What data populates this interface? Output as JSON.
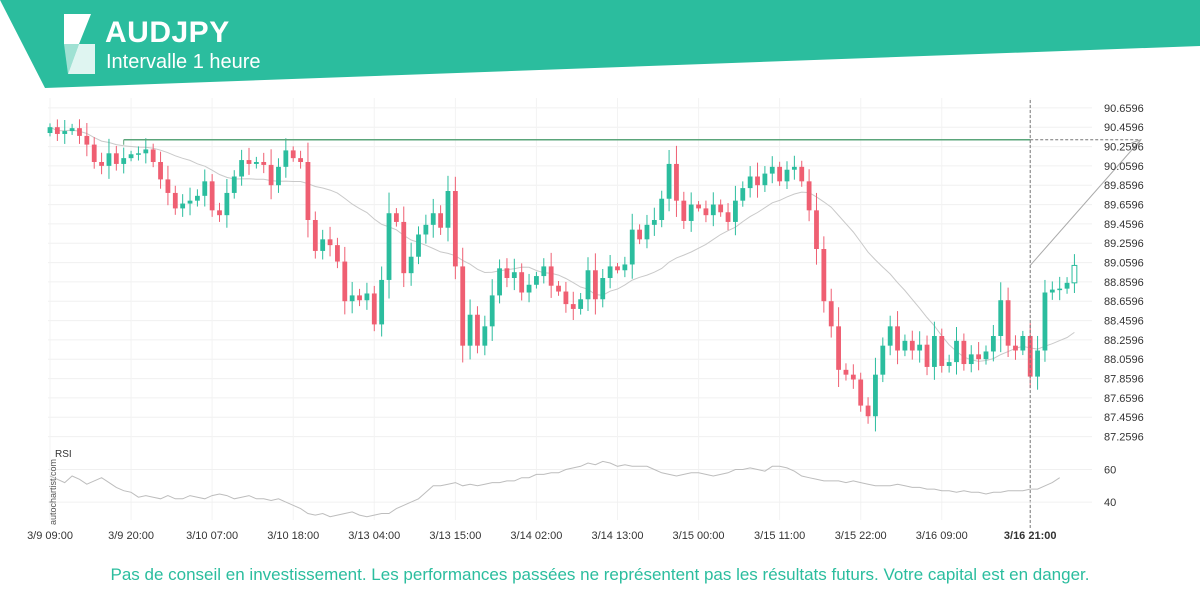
{
  "header": {
    "symbol": "AUDJPY",
    "interval": "Intervalle 1 heure",
    "brand_color": "#2bbd9e"
  },
  "footer": {
    "disclaimer": "Pas de conseil en investissement. Les performances passées ne représentent pas les résultats futurs. Votre capital est en danger."
  },
  "watermark": "autochartist.com",
  "chart_data": {
    "type": "candlestick",
    "title": "AUDJPY",
    "subtitle": "Intervalle 1 heure",
    "up_color": "#2bbd9e",
    "down_color": "#ef5f72",
    "ylim": [
      87.1,
      90.7
    ],
    "y_ticks": [
      "90.6596",
      "90.4596",
      "90.2596",
      "90.0596",
      "89.8596",
      "89.6596",
      "89.4596",
      "89.2596",
      "89.0596",
      "88.8596",
      "88.6596",
      "88.4596",
      "88.2596",
      "88.0596",
      "87.8596",
      "87.6596",
      "87.4596",
      "87.2596"
    ],
    "y_tick_values": [
      90.6596,
      90.4596,
      90.2596,
      90.0596,
      89.8596,
      89.6596,
      89.4596,
      89.2596,
      89.0596,
      88.8596,
      88.6596,
      88.4596,
      88.2596,
      88.0596,
      87.8596,
      87.6596,
      87.4596,
      87.2596
    ],
    "x_tick_labels": [
      "3/9 09:00",
      "3/9 20:00",
      "3/10 07:00",
      "3/10 18:00",
      "3/13 04:00",
      "3/13 15:00",
      "3/14 02:00",
      "3/14 13:00",
      "3/15 00:00",
      "3/15 11:00",
      "3/15 22:00",
      "3/16 09:00",
      "3/16 21:00"
    ],
    "x_tick_bar_index": [
      0,
      11,
      22,
      33,
      44,
      55,
      66,
      77,
      88,
      99,
      110,
      121,
      133
    ],
    "current_bar_label": "3/16 21:00",
    "current_bar_index": 133,
    "resistance_level": 90.33,
    "resistance_start_index": 10,
    "forecast_target": {
      "bar_index": 148,
      "price": 90.33
    },
    "grid": true,
    "closes": [
      90.46,
      90.39,
      90.42,
      90.45,
      90.37,
      90.28,
      90.1,
      90.06,
      90.19,
      90.08,
      90.14,
      90.18,
      90.19,
      90.23,
      90.1,
      89.92,
      89.78,
      89.62,
      89.67,
      89.7,
      89.75,
      89.9,
      89.6,
      89.55,
      89.78,
      89.95,
      90.12,
      90.08,
      90.1,
      90.07,
      89.86,
      90.05,
      90.22,
      90.14,
      90.1,
      89.5,
      89.18,
      89.3,
      89.24,
      89.07,
      88.66,
      88.72,
      88.67,
      88.74,
      88.42,
      88.88,
      89.57,
      89.48,
      88.95,
      89.12,
      89.35,
      89.45,
      89.57,
      89.42,
      89.8,
      89.02,
      88.2,
      88.52,
      88.2,
      88.4,
      88.72,
      89.0,
      88.9,
      88.96,
      88.75,
      88.83,
      88.92,
      89.02,
      88.82,
      88.76,
      88.63,
      88.58,
      88.68,
      88.98,
      88.68,
      88.9,
      89.02,
      88.98,
      89.04,
      89.4,
      89.3,
      89.45,
      89.5,
      89.72,
      90.08,
      89.7,
      89.49,
      89.66,
      89.62,
      89.55,
      89.66,
      89.58,
      89.48,
      89.7,
      89.83,
      89.95,
      89.86,
      89.98,
      90.05,
      89.9,
      90.02,
      90.05,
      89.9,
      89.6,
      89.2,
      88.66,
      88.4,
      87.95,
      87.9,
      87.85,
      87.58,
      87.47,
      87.9,
      88.2,
      88.4,
      88.15,
      88.25,
      88.15,
      88.21,
      87.98,
      88.3,
      87.99,
      88.03,
      88.25,
      88.01,
      88.11,
      88.06,
      88.14,
      88.3,
      88.67,
      88.2,
      88.15,
      88.3,
      87.88,
      88.15,
      88.75,
      88.78,
      88.79,
      88.85,
      89.03
    ]
  },
  "rsi": {
    "label": "RSI",
    "y_ticks": [
      "60",
      "40"
    ],
    "y_tick_values": [
      60,
      40
    ],
    "ylim": [
      29,
      72
    ],
    "values": [
      56,
      54,
      52,
      56,
      54,
      51,
      53,
      55,
      52,
      49,
      47,
      46,
      43,
      44,
      43,
      42,
      44,
      42,
      42,
      44,
      43,
      42,
      44,
      45,
      44,
      42,
      43,
      44,
      42,
      42,
      41,
      42,
      40,
      38,
      36,
      33,
      32,
      33,
      31,
      32,
      33,
      34,
      32,
      31,
      32,
      33,
      33,
      36,
      38,
      40,
      42,
      46,
      50,
      50,
      51,
      52,
      50,
      51,
      50,
      51,
      52,
      52,
      53,
      53,
      55,
      55,
      57,
      57,
      58,
      58,
      60,
      61,
      62,
      64,
      63,
      65,
      64,
      62,
      63,
      62,
      62,
      62,
      60,
      58,
      57,
      56,
      57,
      58,
      58,
      57,
      56,
      57,
      58,
      60,
      60,
      61,
      60,
      59,
      62,
      62,
      61,
      59,
      56,
      55,
      54,
      53,
      53,
      53,
      52,
      53,
      52,
      51,
      50,
      50,
      50,
      51,
      50,
      49,
      49,
      48,
      48,
      47,
      47,
      46,
      47,
      46,
      46,
      45,
      46,
      46,
      47,
      47,
      47,
      48,
      48,
      50,
      52,
      55
    ]
  }
}
